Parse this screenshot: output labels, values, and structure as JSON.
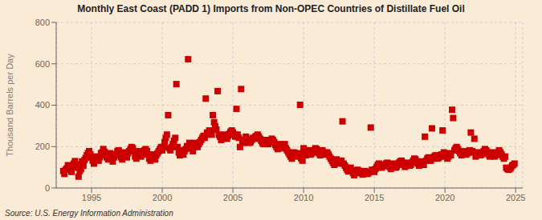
{
  "chart_data": {
    "type": "scatter",
    "title": "Monthly East Coast (PADD 1) Imports from Non-OPEC Countries of Distillate Fuel Oil",
    "ylabel": "Thousand Barrels per Day",
    "annotation": "Source: U.S. Energy Information Administration",
    "color": "#cc0000",
    "marker": "square",
    "grid": true,
    "xlim": [
      1992.5,
      2025.5
    ],
    "ylim": [
      0,
      800
    ],
    "xticks": [
      1995,
      2000,
      2005,
      2010,
      2015,
      2020,
      2025
    ],
    "yticks": [
      0,
      200,
      400,
      600,
      800
    ],
    "x": [
      1993.0,
      1993.08,
      1993.17,
      1993.25,
      1993.33,
      1993.42,
      1993.5,
      1993.58,
      1993.67,
      1993.75,
      1993.83,
      1993.92,
      1994.0,
      1994.08,
      1994.17,
      1994.25,
      1994.33,
      1994.42,
      1994.5,
      1994.58,
      1994.67,
      1994.75,
      1994.83,
      1994.92,
      1995.0,
      1995.08,
      1995.17,
      1995.25,
      1995.33,
      1995.42,
      1995.5,
      1995.58,
      1995.67,
      1995.75,
      1995.83,
      1995.92,
      1996.0,
      1996.08,
      1996.17,
      1996.25,
      1996.33,
      1996.42,
      1996.5,
      1996.58,
      1996.67,
      1996.75,
      1996.83,
      1996.92,
      1997.0,
      1997.08,
      1997.17,
      1997.25,
      1997.33,
      1997.42,
      1997.5,
      1997.58,
      1997.67,
      1997.75,
      1997.83,
      1997.92,
      1998.0,
      1998.08,
      1998.17,
      1998.25,
      1998.33,
      1998.42,
      1998.5,
      1998.58,
      1998.67,
      1998.75,
      1998.83,
      1998.92,
      1999.0,
      1999.08,
      1999.17,
      1999.25,
      1999.33,
      1999.42,
      1999.5,
      1999.58,
      1999.67,
      1999.75,
      1999.83,
      1999.92,
      2000.0,
      2000.08,
      2000.17,
      2000.25,
      2000.33,
      2000.42,
      2000.5,
      2000.58,
      2000.67,
      2000.75,
      2000.83,
      2000.92,
      2001.0,
      2001.08,
      2001.17,
      2001.25,
      2001.33,
      2001.42,
      2001.5,
      2001.58,
      2001.67,
      2001.75,
      2001.83,
      2001.92,
      2002.0,
      2002.08,
      2002.17,
      2002.25,
      2002.33,
      2002.42,
      2002.5,
      2002.58,
      2002.67,
      2002.75,
      2002.83,
      2002.92,
      2003.0,
      2003.08,
      2003.17,
      2003.25,
      2003.33,
      2003.42,
      2003.5,
      2003.58,
      2003.67,
      2003.75,
      2003.83,
      2003.92,
      2004.0,
      2004.08,
      2004.17,
      2004.25,
      2004.33,
      2004.42,
      2004.5,
      2004.58,
      2004.67,
      2004.75,
      2004.83,
      2004.92,
      2005.0,
      2005.08,
      2005.17,
      2005.25,
      2005.33,
      2005.42,
      2005.5,
      2005.58,
      2005.67,
      2005.75,
      2005.83,
      2005.92,
      2006.0,
      2006.08,
      2006.17,
      2006.25,
      2006.33,
      2006.42,
      2006.5,
      2006.58,
      2006.67,
      2006.75,
      2006.83,
      2006.92,
      2007.0,
      2007.08,
      2007.17,
      2007.25,
      2007.33,
      2007.42,
      2007.5,
      2007.58,
      2007.67,
      2007.75,
      2007.83,
      2007.92,
      2008.0,
      2008.08,
      2008.17,
      2008.25,
      2008.33,
      2008.42,
      2008.5,
      2008.58,
      2008.67,
      2008.75,
      2008.83,
      2008.92,
      2009.0,
      2009.08,
      2009.17,
      2009.25,
      2009.33,
      2009.42,
      2009.5,
      2009.58,
      2009.67,
      2009.75,
      2009.83,
      2009.92,
      2010.0,
      2010.08,
      2010.17,
      2010.25,
      2010.33,
      2010.42,
      2010.5,
      2010.58,
      2010.67,
      2010.75,
      2010.83,
      2010.92,
      2011.0,
      2011.08,
      2011.17,
      2011.25,
      2011.33,
      2011.42,
      2011.5,
      2011.58,
      2011.67,
      2011.75,
      2011.83,
      2011.92,
      2012.0,
      2012.08,
      2012.17,
      2012.25,
      2012.33,
      2012.42,
      2012.5,
      2012.58,
      2012.67,
      2012.75,
      2012.83,
      2012.92,
      2013.0,
      2013.08,
      2013.17,
      2013.25,
      2013.33,
      2013.42,
      2013.5,
      2013.58,
      2013.67,
      2013.75,
      2013.83,
      2013.92,
      2014.0,
      2014.08,
      2014.17,
      2014.25,
      2014.33,
      2014.42,
      2014.5,
      2014.58,
      2014.67,
      2014.75,
      2014.83,
      2014.92,
      2015.0,
      2015.08,
      2015.17,
      2015.25,
      2015.33,
      2015.42,
      2015.5,
      2015.58,
      2015.67,
      2015.75,
      2015.83,
      2015.92,
      2016.0,
      2016.08,
      2016.17,
      2016.25,
      2016.33,
      2016.42,
      2016.5,
      2016.58,
      2016.67,
      2016.75,
      2016.83,
      2016.92,
      2017.0,
      2017.08,
      2017.17,
      2017.25,
      2017.33,
      2017.42,
      2017.5,
      2017.58,
      2017.67,
      2017.75,
      2017.83,
      2017.92,
      2018.0,
      2018.08,
      2018.17,
      2018.25,
      2018.33,
      2018.42,
      2018.5,
      2018.58,
      2018.67,
      2018.75,
      2018.83,
      2018.92,
      2019.0,
      2019.08,
      2019.17,
      2019.25,
      2019.33,
      2019.42,
      2019.5,
      2019.58,
      2019.67,
      2019.75,
      2019.83,
      2019.92,
      2020.0,
      2020.08,
      2020.17,
      2020.25,
      2020.33,
      2020.42,
      2020.5,
      2020.58,
      2020.67,
      2020.75,
      2020.83,
      2020.92,
      2021.0,
      2021.08,
      2021.17,
      2021.25,
      2021.33,
      2021.42,
      2021.5,
      2021.58,
      2021.67,
      2021.75,
      2021.83,
      2021.92,
      2022.0,
      2022.08,
      2022.17,
      2022.25,
      2022.33,
      2022.42,
      2022.5,
      2022.58,
      2022.67,
      2022.75,
      2022.83,
      2022.92,
      2023.0,
      2023.08,
      2023.17,
      2023.25,
      2023.33,
      2023.42,
      2023.5,
      2023.58,
      2023.67,
      2023.75,
      2023.83,
      2023.92,
      2024.0,
      2024.08,
      2024.17,
      2024.25,
      2024.33,
      2024.42,
      2024.5,
      2024.58,
      2024.67,
      2024.75,
      2024.83,
      2024.92
    ],
    "values": [
      82,
      68,
      88,
      95,
      110,
      100,
      92,
      78,
      105,
      118,
      130,
      115,
      98,
      55,
      82,
      92,
      128,
      108,
      135,
      145,
      158,
      168,
      178,
      162,
      148,
      132,
      118,
      142,
      152,
      142,
      132,
      148,
      168,
      172,
      188,
      175,
      158,
      148,
      138,
      158,
      168,
      145,
      128,
      148,
      158,
      162,
      178,
      182,
      168,
      148,
      138,
      158,
      172,
      162,
      148,
      168,
      178,
      188,
      198,
      192,
      178,
      152,
      142,
      162,
      178,
      168,
      152,
      162,
      172,
      182,
      188,
      178,
      162,
      142,
      132,
      152,
      162,
      148,
      138,
      158,
      168,
      178,
      188,
      198,
      182,
      198,
      222,
      242,
      258,
      352,
      192,
      182,
      198,
      212,
      228,
      242,
      502,
      198,
      172,
      158,
      182,
      172,
      162,
      178,
      188,
      202,
      622,
      218,
      208,
      192,
      178,
      198,
      218,
      208,
      198,
      212,
      222,
      232,
      242,
      252,
      242,
      432,
      268,
      258,
      278,
      268,
      258,
      352,
      318,
      298,
      282,
      468,
      258,
      248,
      232,
      242,
      252,
      258,
      248,
      238,
      252,
      262,
      272,
      278,
      268,
      258,
      248,
      382,
      258,
      242,
      198,
      478,
      228,
      218,
      232,
      248,
      238,
      228,
      218,
      222,
      232,
      242,
      238,
      248,
      252,
      258,
      248,
      238,
      228,
      218,
      212,
      222,
      232,
      222,
      212,
      218,
      228,
      238,
      232,
      222,
      208,
      198,
      188,
      202,
      212,
      202,
      192,
      202,
      212,
      192,
      182,
      172,
      162,
      152,
      142,
      158,
      172,
      162,
      152,
      158,
      168,
      402,
      142,
      132,
      192,
      172,
      158,
      168,
      182,
      172,
      162,
      168,
      172,
      182,
      192,
      188,
      178,
      168,
      158,
      172,
      182,
      172,
      162,
      168,
      172,
      162,
      152,
      142,
      132,
      122,
      112,
      128,
      138,
      128,
      118,
      122,
      132,
      322,
      118,
      108,
      98,
      88,
      80,
      90,
      98,
      85,
      72,
      62,
      72,
      80,
      88,
      82,
      78,
      72,
      65,
      75,
      82,
      75,
      68,
      72,
      78,
      292,
      88,
      82,
      78,
      92,
      102,
      112,
      118,
      108,
      98,
      102,
      108,
      112,
      118,
      122,
      112,
      102,
      92,
      108,
      118,
      108,
      98,
      102,
      112,
      122,
      128,
      132,
      122,
      112,
      102,
      112,
      122,
      118,
      108,
      112,
      122,
      132,
      142,
      138,
      128,
      118,
      108,
      118,
      128,
      122,
      112,
      248,
      132,
      142,
      148,
      142,
      132,
      288,
      142,
      152,
      158,
      152,
      142,
      148,
      152,
      162,
      278,
      172,
      162,
      152,
      142,
      152,
      168,
      158,
      378,
      338,
      182,
      192,
      198,
      188,
      178,
      168,
      158,
      168,
      178,
      172,
      162,
      168,
      172,
      182,
      268,
      178,
      172,
      238,
      152,
      162,
      172,
      168,
      158,
      162,
      168,
      178,
      188,
      182,
      172,
      162,
      152,
      162,
      172,
      162,
      152,
      158,
      168,
      172,
      182,
      172,
      162,
      152,
      142,
      152,
      98,
      92,
      88,
      92,
      98,
      108,
      112,
      118
    ]
  }
}
